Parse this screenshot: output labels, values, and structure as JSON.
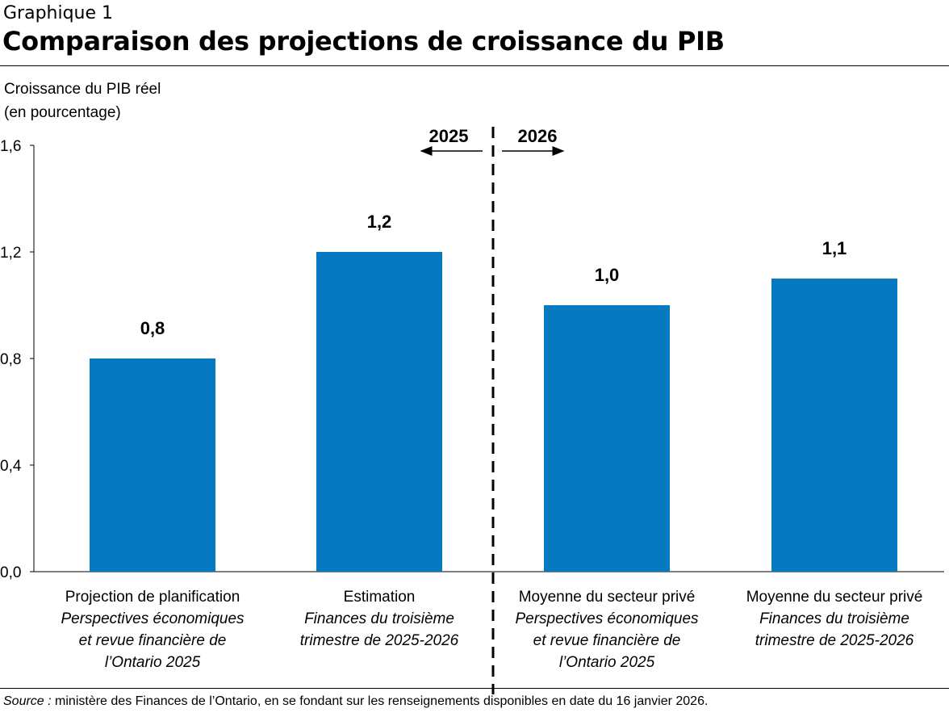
{
  "header": {
    "subtitle": "Graphique 1",
    "title": "Comparaison des projections de croissance du PIB"
  },
  "chart_data": {
    "type": "bar",
    "ylabel_line1": "Croissance du PIB réel",
    "ylabel_line2": "(en pourcentage)",
    "ylim": [
      0,
      1.6
    ],
    "yticks": [
      "0,0",
      "0,4",
      "0,8",
      "1,2",
      "1,6"
    ],
    "ytick_values": [
      0,
      0.4,
      0.8,
      1.2,
      1.6
    ],
    "grid": false,
    "bar_color": "#0679c0",
    "categories": [
      {
        "line1": "Projection de planification",
        "italic": [
          "Perspectives économiques",
          "et revue financière de",
          "l’Ontario 2025"
        ]
      },
      {
        "line1": "Estimation",
        "italic": [
          "Finances du troisième",
          "trimestre de 2025-2026"
        ]
      },
      {
        "line1": "Moyenne du secteur privé",
        "italic": [
          "Perspectives économiques",
          "et revue financière de",
          "l’Ontario 2025"
        ]
      },
      {
        "line1": "Moyenne du secteur privé",
        "italic": [
          "Finances du troisième",
          "trimestre de 2025-2026"
        ]
      }
    ],
    "values": [
      0.8,
      1.2,
      1.0,
      1.1
    ],
    "data_labels": [
      "0,8",
      "1,2",
      "1,0",
      "1,1"
    ],
    "annotations": {
      "left_year": "2025",
      "right_year": "2026"
    }
  },
  "source": {
    "label": "Source :",
    "text": " ministère des Finances de l’Ontario, en se fondant sur les renseignements disponibles en date du 16 janvier 2026."
  }
}
